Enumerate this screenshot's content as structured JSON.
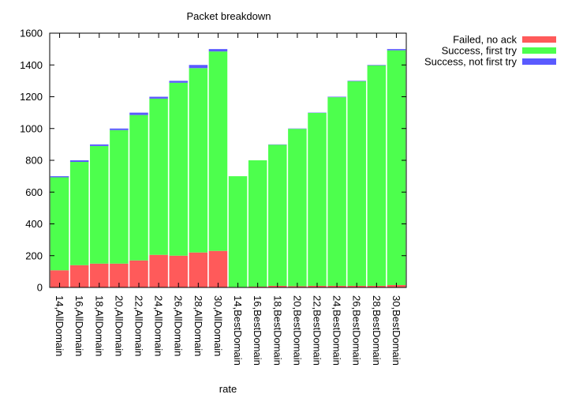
{
  "chart_data": {
    "type": "bar",
    "stacked": true,
    "title": "Packet breakdown",
    "xlabel": "rate",
    "ylabel": "",
    "ylim": [
      0,
      1600
    ],
    "yticks": [
      0,
      200,
      400,
      600,
      800,
      1000,
      1200,
      1400,
      1600
    ],
    "legend_position": "top-right, outside plot",
    "grid": false,
    "categories": [
      "14,AllDomain",
      "16,AllDomain",
      "18,AllDomain",
      "20,AllDomain",
      "22,AllDomain",
      "24,AllDomain",
      "26,AllDomain",
      "28,AllDomain",
      "30,AllDomain",
      "14,BestDomain",
      "16,BestDomain",
      "18,BestDomain",
      "20,BestDomain",
      "22,BestDomain",
      "24,BestDomain",
      "26,BestDomain",
      "28,BestDomain",
      "30,BestDomain"
    ],
    "series": [
      {
        "name": "Failed, no ack",
        "color": "#ff5a5a",
        "values": [
          108,
          140,
          150,
          150,
          170,
          205,
          200,
          220,
          230,
          3,
          5,
          10,
          8,
          10,
          10,
          10,
          10,
          15
        ]
      },
      {
        "name": "Success, first try",
        "color": "#4dff4d",
        "values": [
          585,
          650,
          740,
          840,
          915,
          983,
          1088,
          1160,
          1255,
          697,
          795,
          888,
          990,
          1088,
          1187,
          1287,
          1387,
          1477
        ]
      },
      {
        "name": "Success, not first try",
        "color": "#5a5aff",
        "values": [
          7,
          10,
          10,
          10,
          15,
          12,
          12,
          20,
          15,
          0,
          0,
          2,
          2,
          2,
          3,
          3,
          3,
          8
        ]
      }
    ]
  }
}
